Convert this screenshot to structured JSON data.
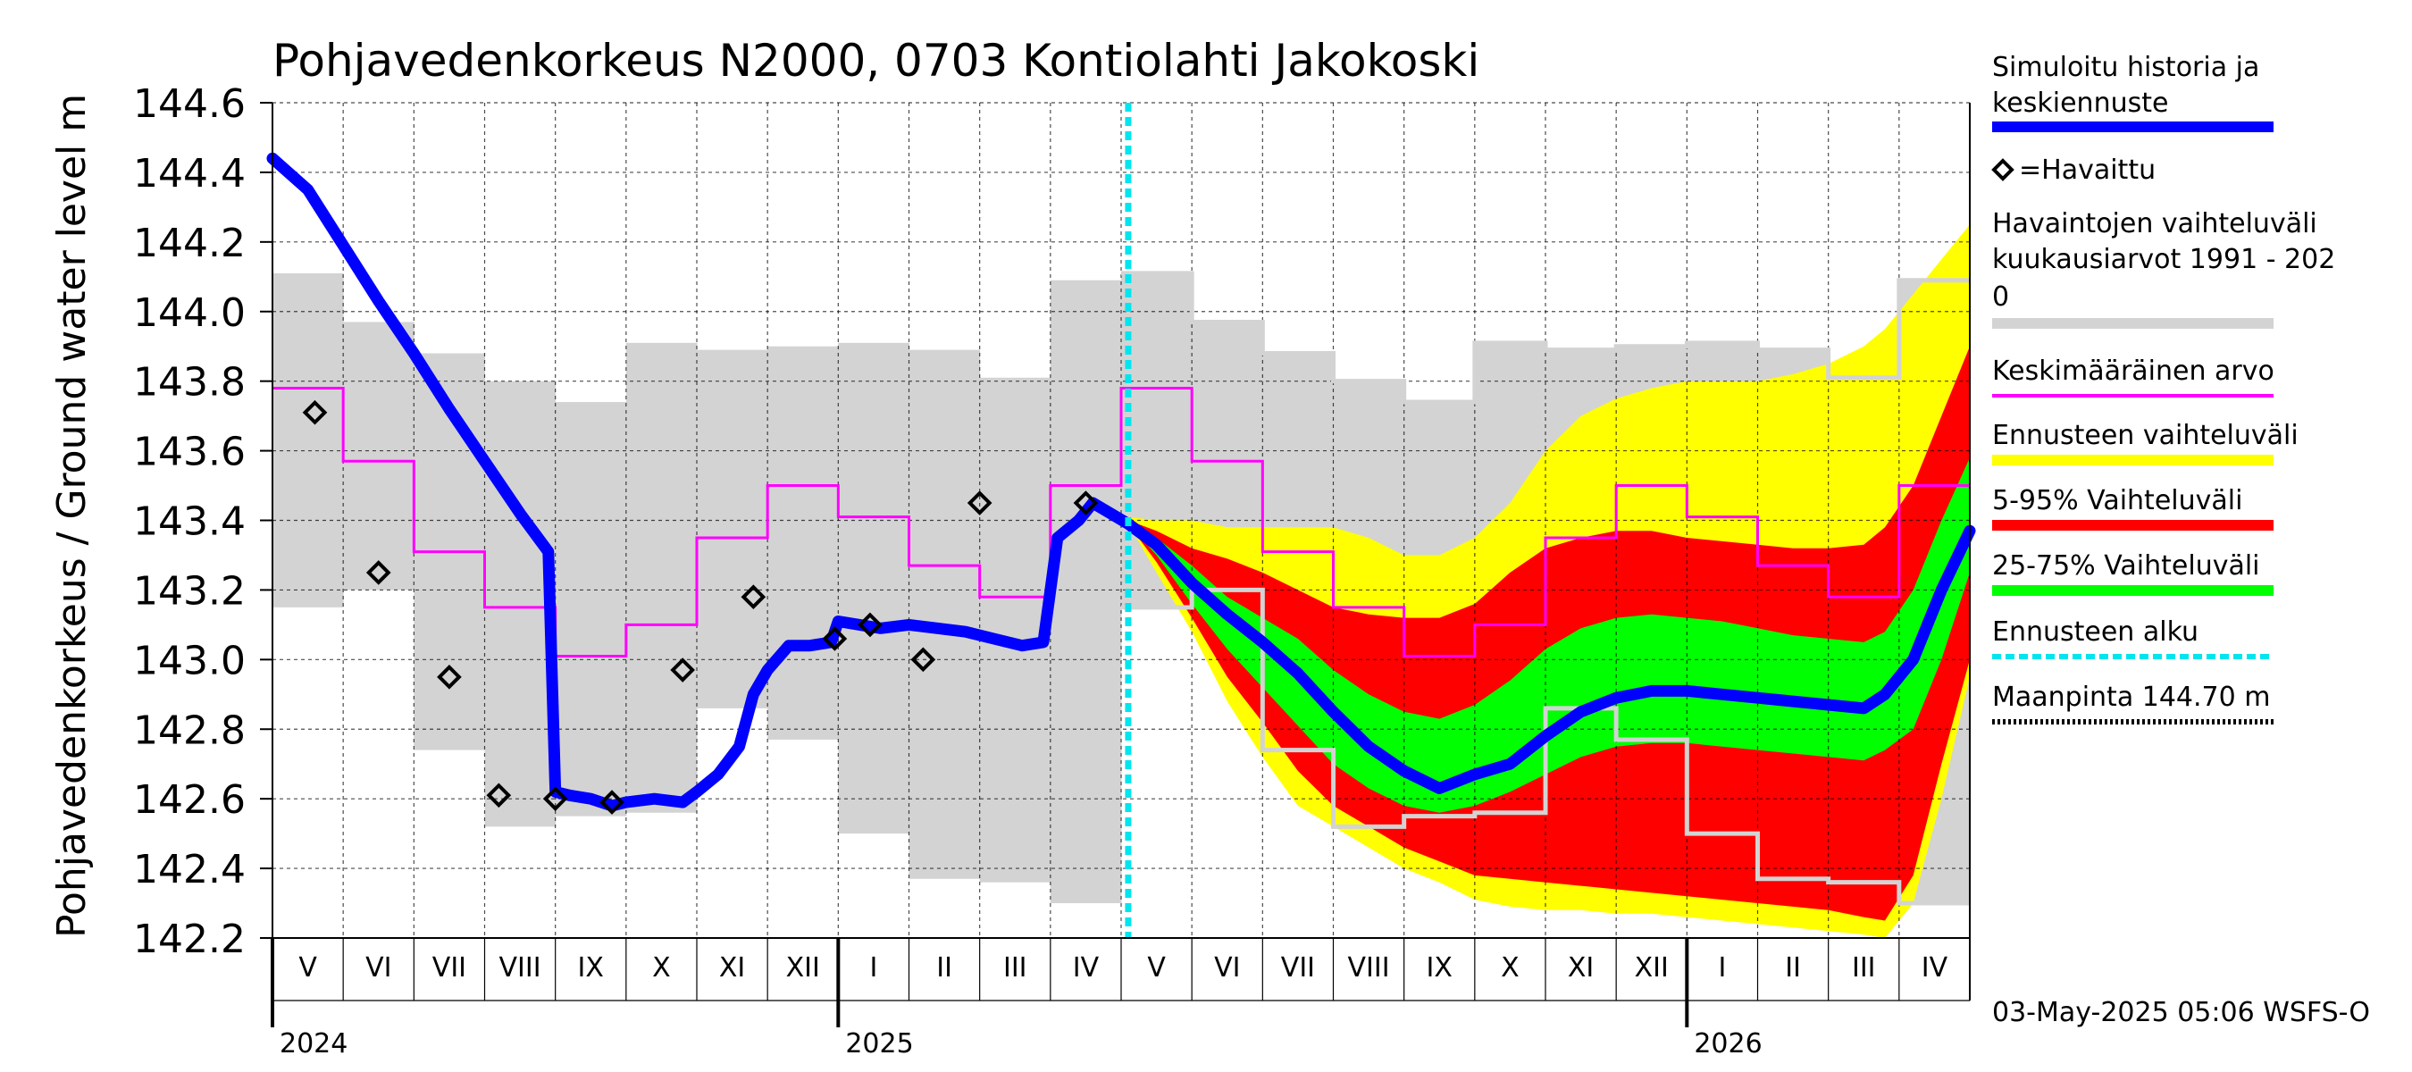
{
  "chart_data": {
    "type": "area",
    "title": "Pohjavedenkorkeus N2000, 0703 Kontiolahti Jakokoski",
    "ylabel": "Pohjavedenkorkeus / Ground water level   m",
    "ylim": [
      142.2,
      144.6
    ],
    "yticks": [
      "142.2",
      "142.4",
      "142.6",
      "142.8",
      "143.0",
      "143.2",
      "143.4",
      "143.6",
      "143.8",
      "144.0",
      "144.2",
      "144.4",
      "144.6"
    ],
    "months": [
      "V",
      "VI",
      "VII",
      "VIII",
      "IX",
      "X",
      "XI",
      "XII",
      "I",
      "II",
      "III",
      "IV",
      "V",
      "VI",
      "VII",
      "VIII",
      "IX",
      "X",
      "XI",
      "XII",
      "I",
      "II",
      "III",
      "IV"
    ],
    "years": [
      {
        "label": "2024",
        "month_index": 0
      },
      {
        "label": "2025",
        "month_index": 8
      },
      {
        "label": "2026",
        "month_index": 20
      }
    ],
    "footer": "03-May-2025 05:06 WSFS-O",
    "forecast_start_month_index": 12.1,
    "legend": [
      {
        "label": "Simuloitu historia ja\nkeskiennuste",
        "color": "#0000ff",
        "kind": "thick"
      },
      {
        "label": "=Havaittu",
        "color": "#000000",
        "kind": "diamond"
      },
      {
        "label": "Havaintojen vaihteluväli\n kuukausiarvot 1991 - 202\n0",
        "color": "#d3d3d3",
        "kind": "thick"
      },
      {
        "label": "Keskimääräinen arvo",
        "color": "#ff00ff",
        "kind": "thin"
      },
      {
        "label": "Ennusteen vaihteluväli",
        "color": "#ffff00",
        "kind": "thick"
      },
      {
        "label": "5-95% Vaihteluväli",
        "color": "#ff0000",
        "kind": "thick"
      },
      {
        "label": "25-75% Vaihteluväli",
        "color": "#00ff00",
        "kind": "thick"
      },
      {
        "label": "Ennusteen alku",
        "color": "#00e5ee",
        "kind": "dashed"
      },
      {
        "label": "Maanpinta 144.70 m",
        "color": "#000000",
        "kind": "dotted"
      }
    ],
    "monthly_range": {
      "months_index": [
        0,
        1,
        2,
        3,
        4,
        5,
        6,
        7,
        8,
        9,
        10,
        11,
        12,
        13,
        14,
        15,
        16,
        17,
        18,
        19,
        20,
        21,
        22,
        23
      ],
      "max": [
        144.11,
        143.97,
        143.88,
        143.8,
        143.74,
        143.91,
        143.89,
        143.9,
        143.91,
        143.89,
        143.81,
        144.09,
        144.11,
        143.97,
        143.88,
        143.8,
        143.74,
        143.91,
        143.89,
        143.9,
        143.91,
        143.89,
        143.81,
        144.09
      ],
      "min": [
        143.15,
        143.2,
        142.74,
        142.52,
        142.55,
        142.56,
        142.86,
        142.77,
        142.5,
        142.37,
        142.36,
        142.3,
        143.15,
        143.2,
        142.74,
        142.52,
        142.55,
        142.56,
        142.86,
        142.77,
        142.5,
        142.37,
        142.36,
        142.3
      ]
    },
    "monthly_mean": [
      143.78,
      143.57,
      143.31,
      143.15,
      143.01,
      143.1,
      143.35,
      143.5,
      143.41,
      143.27,
      143.18,
      143.5,
      143.78,
      143.57,
      143.31,
      143.15,
      143.01,
      143.1,
      143.35,
      143.5,
      143.41,
      143.27,
      143.18,
      143.5
    ],
    "observed": {
      "x": [
        0.6,
        1.5,
        2.5,
        3.2,
        4.0,
        4.8,
        5.8,
        6.8,
        7.95,
        8.45,
        9.2,
        10.0,
        11.5
      ],
      "y": [
        143.71,
        143.25,
        142.95,
        142.61,
        142.6,
        142.59,
        142.97,
        143.18,
        143.06,
        143.1,
        143.0,
        143.45,
        143.45
      ]
    },
    "simulated": {
      "x": [
        0,
        0.5,
        1,
        1.5,
        2,
        2.5,
        3,
        3.5,
        3.9,
        4.0,
        4.2,
        4.5,
        4.8,
        5.0,
        5.4,
        5.8,
        6.0,
        6.3,
        6.6,
        6.8,
        7.0,
        7.3,
        7.6,
        7.9,
        8.0,
        8.3,
        8.6,
        9.0,
        9.4,
        9.8,
        10.2,
        10.6,
        10.9,
        11.1,
        11.4,
        11.6
      ],
      "y": [
        144.44,
        144.35,
        144.19,
        144.03,
        143.88,
        143.72,
        143.57,
        143.42,
        143.31,
        142.62,
        142.61,
        142.6,
        142.58,
        142.59,
        142.6,
        142.59,
        142.62,
        142.67,
        142.75,
        142.9,
        142.97,
        143.04,
        143.04,
        143.05,
        143.11,
        143.1,
        143.09,
        143.1,
        143.09,
        143.08,
        143.06,
        143.04,
        143.05,
        143.35,
        143.4,
        143.45
      ]
    },
    "forecast": {
      "x": [
        11.6,
        12.1,
        12.5,
        13.0,
        13.5,
        14.0,
        14.5,
        15.0,
        15.5,
        16.0,
        16.5,
        17.0,
        17.5,
        18.0,
        18.5,
        19.0,
        19.5,
        20.0,
        20.5,
        21.0,
        21.5,
        22.0,
        22.5,
        22.8,
        23.2,
        23.6,
        24.0
      ],
      "median": [
        143.45,
        143.39,
        143.33,
        143.22,
        143.13,
        143.05,
        142.96,
        142.85,
        142.75,
        142.68,
        142.63,
        142.67,
        142.7,
        142.78,
        142.85,
        142.89,
        142.91,
        142.91,
        142.9,
        142.89,
        142.88,
        142.87,
        142.86,
        142.9,
        143.0,
        143.2,
        143.37
      ],
      "p25": [
        143.45,
        143.39,
        143.3,
        143.16,
        143.03,
        142.92,
        142.81,
        142.7,
        142.63,
        142.58,
        142.56,
        142.58,
        142.62,
        142.67,
        142.72,
        142.75,
        142.76,
        142.76,
        142.75,
        142.74,
        142.73,
        142.72,
        142.71,
        142.74,
        142.8,
        143.0,
        143.25
      ],
      "p75": [
        143.45,
        143.39,
        143.35,
        143.27,
        143.18,
        143.12,
        143.06,
        142.97,
        142.9,
        142.85,
        142.83,
        142.87,
        142.94,
        143.03,
        143.09,
        143.12,
        143.13,
        143.12,
        143.11,
        143.09,
        143.07,
        143.06,
        143.05,
        143.08,
        143.2,
        143.4,
        143.58
      ],
      "p5": [
        143.45,
        143.39,
        143.28,
        143.12,
        142.95,
        142.82,
        142.68,
        142.58,
        142.52,
        142.46,
        142.42,
        142.38,
        142.37,
        142.36,
        142.35,
        142.34,
        142.33,
        142.32,
        142.31,
        142.3,
        142.29,
        142.28,
        142.26,
        142.25,
        142.38,
        142.7,
        143.0
      ],
      "p95": [
        143.45,
        143.4,
        143.37,
        143.32,
        143.29,
        143.25,
        143.2,
        143.15,
        143.13,
        143.12,
        143.12,
        143.16,
        143.25,
        143.32,
        143.35,
        143.37,
        143.37,
        143.35,
        143.34,
        143.33,
        143.32,
        143.32,
        143.33,
        143.38,
        143.5,
        143.7,
        143.9
      ],
      "min": [
        143.45,
        143.39,
        143.25,
        143.08,
        142.88,
        142.72,
        142.58,
        142.52,
        142.46,
        142.4,
        142.36,
        142.31,
        142.29,
        142.28,
        142.28,
        142.27,
        142.27,
        142.26,
        142.25,
        142.24,
        142.23,
        142.22,
        142.21,
        142.2,
        142.3,
        142.6,
        142.95
      ],
      "max": [
        143.45,
        143.41,
        143.4,
        143.4,
        143.38,
        143.38,
        143.38,
        143.38,
        143.35,
        143.3,
        143.3,
        143.35,
        143.45,
        143.6,
        143.7,
        143.75,
        143.78,
        143.8,
        143.8,
        143.8,
        143.82,
        143.85,
        143.9,
        143.95,
        144.05,
        144.15,
        144.25
      ]
    },
    "grid": true
  }
}
